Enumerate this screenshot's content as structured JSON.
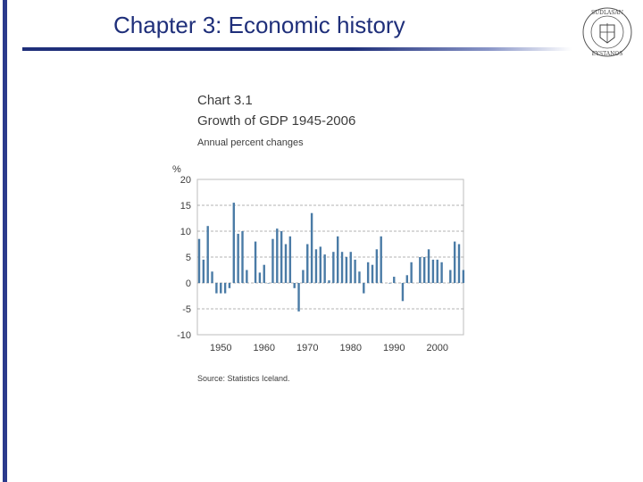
{
  "slide": {
    "title": "Chapter 3: Economic history",
    "accent_color": "#1f2f7a",
    "logo_icon": "university-seal-icon",
    "logo_text": "SUDLASANSKI EYSTANOS"
  },
  "chart_data": {
    "type": "bar",
    "title": "Chart 3.1",
    "subtitle": "Growth of GDP 1945-2006",
    "units_label": "Annual percent changes",
    "ylabel": "%",
    "source": "Source: Statistics Iceland.",
    "bar_color": "#4a7ba6",
    "grid": true,
    "ylim": [
      -10,
      20
    ],
    "yticks": [
      20,
      15,
      10,
      5,
      0,
      -5,
      -10
    ],
    "xlim": [
      1945,
      2006
    ],
    "xticks": [
      1950,
      1960,
      1970,
      1980,
      1990,
      2000
    ],
    "series": [
      {
        "x": [
          1945,
          1946,
          1947,
          1948,
          1949,
          1950,
          1951,
          1952,
          1953,
          1954,
          1955,
          1956,
          1957,
          1958,
          1959,
          1960,
          1961,
          1962,
          1963,
          1964,
          1965,
          1966,
          1967,
          1968,
          1969,
          1970,
          1971,
          1972,
          1973,
          1974,
          1975,
          1976,
          1977,
          1978,
          1979,
          1980,
          1981,
          1982,
          1983,
          1984,
          1985,
          1986,
          1987,
          1988,
          1989,
          1990,
          1991,
          1992,
          1993,
          1994,
          1995,
          1996,
          1997,
          1998,
          1999,
          2000,
          2001,
          2002,
          2003,
          2004,
          2005,
          2006
        ],
        "values": [
          8.5,
          4.5,
          11,
          2.2,
          -2,
          -2,
          -2,
          -1,
          15.5,
          9.5,
          10,
          2.5,
          0,
          8,
          2,
          3.5,
          -0.1,
          8.5,
          10.5,
          10,
          7.5,
          9,
          -1,
          -5.5,
          2.5,
          7.5,
          13.5,
          6.5,
          7,
          5.5,
          0.5,
          6,
          9,
          6,
          5,
          6,
          4.5,
          2.2,
          -2,
          4,
          3.5,
          6.5,
          9,
          0,
          -0.1,
          1.2,
          0,
          -3.5,
          1.5,
          4,
          0,
          5,
          5,
          6.5,
          4.5,
          4.5,
          4,
          0,
          2.5,
          8,
          7.5,
          2.5
        ]
      }
    ]
  }
}
